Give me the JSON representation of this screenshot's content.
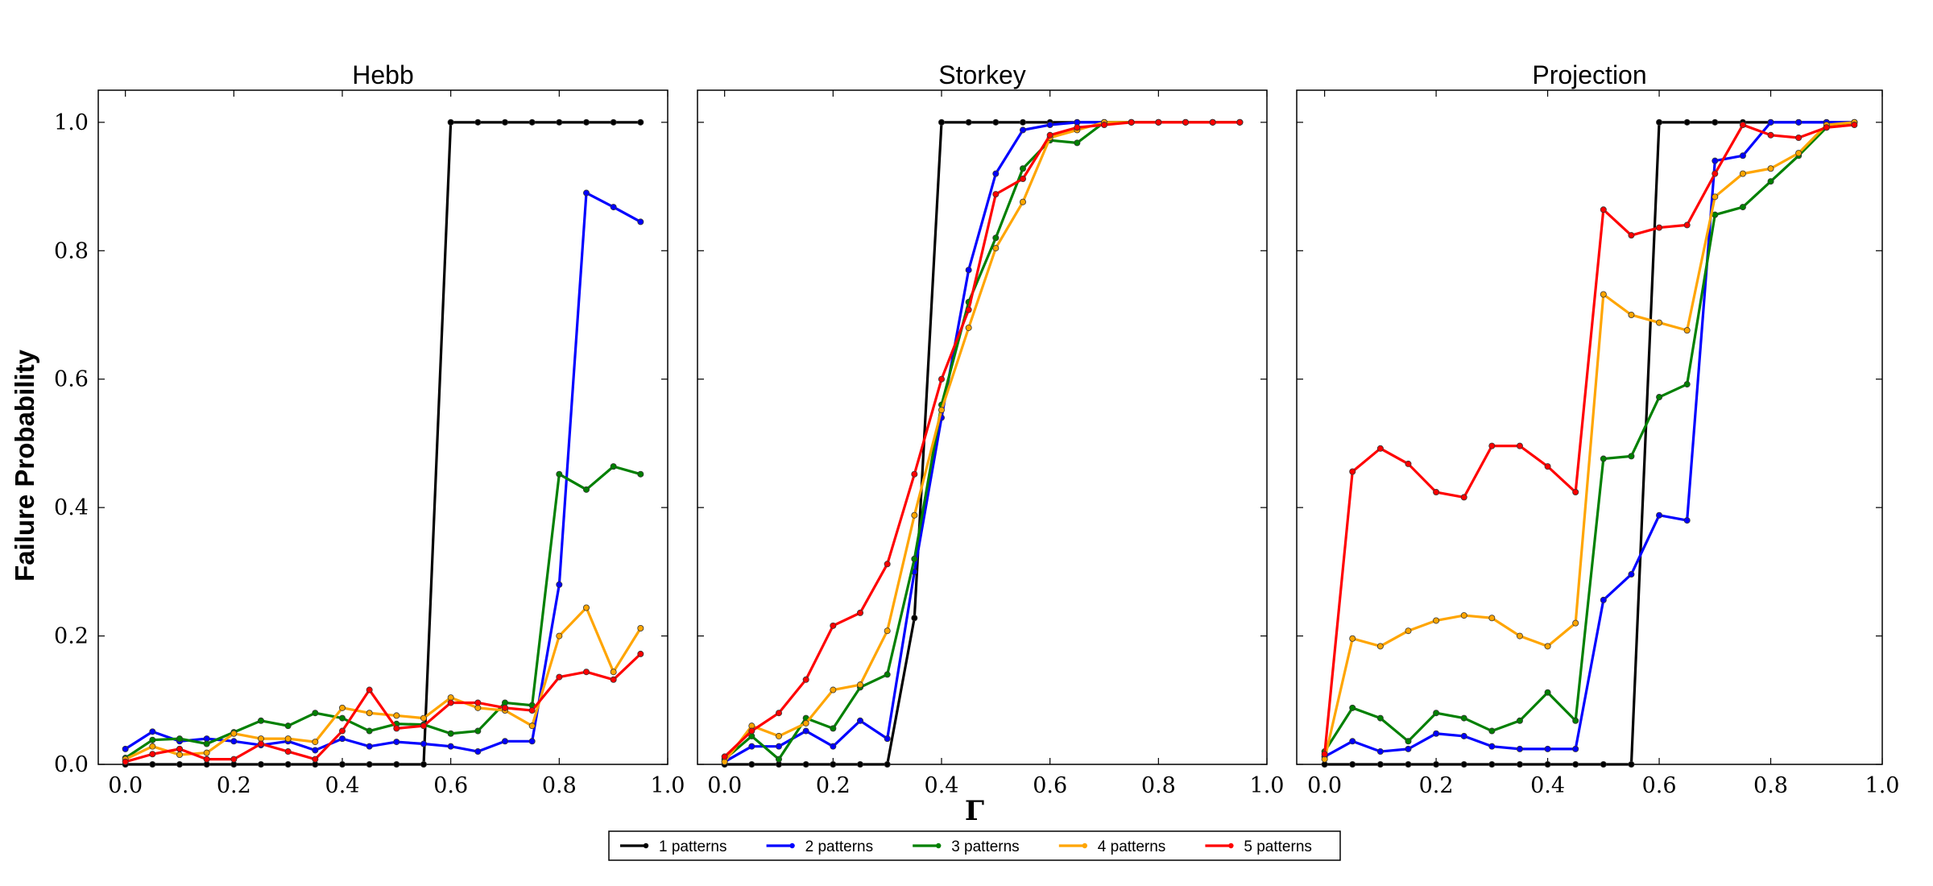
{
  "chart_data": {
    "type": "line",
    "ylabel": "Failure Probability",
    "xlabel": "Γ",
    "xlim": [
      -0.05,
      1.0
    ],
    "ylim": [
      0.0,
      1.05
    ],
    "xticks": [
      0.0,
      0.2,
      0.4,
      0.6,
      0.8,
      1.0
    ],
    "xtick_labels": [
      "0.0",
      "0.2",
      "0.4",
      "0.6",
      "0.8",
      "1.0"
    ],
    "yticks": [
      0.0,
      0.2,
      0.4,
      0.6,
      0.8,
      1.0
    ],
    "ytick_labels": [
      "0.0",
      "0.2",
      "0.4",
      "0.6",
      "0.8",
      "1.0"
    ],
    "grid": false,
    "legend_position": "bottom-center",
    "x": [
      0.0,
      0.05,
      0.1,
      0.15,
      0.2,
      0.25,
      0.3,
      0.35,
      0.4,
      0.45,
      0.5,
      0.55,
      0.6,
      0.65,
      0.7,
      0.75,
      0.8,
      0.85,
      0.9,
      0.95
    ],
    "series_styles": [
      {
        "name": "1 patterns",
        "color": "#000000"
      },
      {
        "name": "2 patterns",
        "color": "#0000ff"
      },
      {
        "name": "3 patterns",
        "color": "#008000"
      },
      {
        "name": "4 patterns",
        "color": "#ffa500"
      },
      {
        "name": "5 patterns",
        "color": "#ff0000"
      }
    ],
    "panels": [
      {
        "title": "Hebb",
        "series": [
          {
            "name": "1 patterns",
            "values": [
              0.0,
              0.0,
              0.0,
              0.0,
              0.0,
              0.0,
              0.0,
              0.0,
              0.0,
              0.0,
              0.0,
              0.0,
              1.0,
              1.0,
              1.0,
              1.0,
              1.0,
              1.0,
              1.0,
              1.0
            ]
          },
          {
            "name": "2 patterns",
            "values": [
              0.024,
              0.051,
              0.036,
              0.04,
              0.036,
              0.03,
              0.036,
              0.022,
              0.04,
              0.028,
              0.035,
              0.032,
              0.028,
              0.02,
              0.036,
              0.036,
              0.28,
              0.89,
              0.868,
              0.845
            ]
          },
          {
            "name": "3 patterns",
            "values": [
              0.01,
              0.038,
              0.04,
              0.032,
              0.05,
              0.068,
              0.06,
              0.08,
              0.072,
              0.052,
              0.063,
              0.062,
              0.048,
              0.052,
              0.096,
              0.092,
              0.452,
              0.428,
              0.464,
              0.452
            ]
          },
          {
            "name": "4 patterns",
            "values": [
              0.008,
              0.028,
              0.015,
              0.018,
              0.048,
              0.04,
              0.04,
              0.035,
              0.088,
              0.08,
              0.076,
              0.072,
              0.104,
              0.088,
              0.084,
              0.06,
              0.2,
              0.244,
              0.144,
              0.212
            ]
          },
          {
            "name": "5 patterns",
            "values": [
              0.004,
              0.016,
              0.024,
              0.008,
              0.008,
              0.032,
              0.02,
              0.008,
              0.052,
              0.116,
              0.056,
              0.06,
              0.096,
              0.096,
              0.088,
              0.084,
              0.136,
              0.144,
              0.132,
              0.172
            ]
          }
        ]
      },
      {
        "title": "Storkey",
        "series": [
          {
            "name": "1 patterns",
            "values": [
              0.0,
              0.0,
              0.0,
              0.0,
              0.0,
              0.0,
              0.0,
              0.228,
              1.0,
              1.0,
              1.0,
              1.0,
              1.0,
              1.0,
              1.0,
              1.0,
              1.0,
              1.0,
              1.0,
              1.0
            ]
          },
          {
            "name": "2 patterns",
            "values": [
              0.004,
              0.028,
              0.028,
              0.052,
              0.028,
              0.068,
              0.04,
              0.3,
              0.54,
              0.77,
              0.92,
              0.988,
              0.996,
              1.0,
              1.0,
              1.0,
              1.0,
              1.0,
              1.0,
              1.0
            ]
          },
          {
            "name": "3 patterns",
            "values": [
              0.008,
              0.044,
              0.008,
              0.072,
              0.056,
              0.12,
              0.14,
              0.32,
              0.56,
              0.72,
              0.82,
              0.928,
              0.972,
              0.968,
              1.0,
              1.0,
              1.0,
              1.0,
              1.0,
              1.0
            ]
          },
          {
            "name": "4 patterns",
            "values": [
              0.004,
              0.06,
              0.044,
              0.064,
              0.116,
              0.124,
              0.208,
              0.388,
              0.552,
              0.68,
              0.804,
              0.876,
              0.976,
              0.988,
              1.0,
              1.0,
              1.0,
              1.0,
              1.0,
              1.0
            ]
          },
          {
            "name": "5 patterns",
            "values": [
              0.012,
              0.052,
              0.08,
              0.132,
              0.216,
              0.236,
              0.312,
              0.452,
              0.6,
              0.708,
              0.888,
              0.912,
              0.98,
              0.992,
              0.996,
              1.0,
              1.0,
              1.0,
              1.0,
              1.0
            ]
          }
        ]
      },
      {
        "title": "Projection",
        "series": [
          {
            "name": "1 patterns",
            "values": [
              0.0,
              0.0,
              0.0,
              0.0,
              0.0,
              0.0,
              0.0,
              0.0,
              0.0,
              0.0,
              0.0,
              0.0,
              1.0,
              1.0,
              1.0,
              1.0,
              1.0,
              1.0,
              1.0,
              1.0
            ]
          },
          {
            "name": "2 patterns",
            "values": [
              0.012,
              0.036,
              0.02,
              0.024,
              0.048,
              0.044,
              0.028,
              0.024,
              0.024,
              0.024,
              0.256,
              0.296,
              0.388,
              0.38,
              0.94,
              0.948,
              1.0,
              1.0,
              1.0,
              1.0
            ]
          },
          {
            "name": "3 patterns",
            "values": [
              0.02,
              0.088,
              0.072,
              0.036,
              0.08,
              0.072,
              0.052,
              0.068,
              0.112,
              0.068,
              0.476,
              0.48,
              0.572,
              0.592,
              0.856,
              0.868,
              0.908,
              0.948,
              0.992,
              1.0
            ]
          },
          {
            "name": "4 patterns",
            "values": [
              0.008,
              0.196,
              0.184,
              0.208,
              0.224,
              0.232,
              0.228,
              0.2,
              0.184,
              0.22,
              0.732,
              0.7,
              0.688,
              0.676,
              0.884,
              0.92,
              0.928,
              0.952,
              0.996,
              1.0
            ]
          },
          {
            "name": "5 patterns",
            "values": [
              0.016,
              0.456,
              0.492,
              0.468,
              0.424,
              0.416,
              0.496,
              0.496,
              0.464,
              0.424,
              0.864,
              0.824,
              0.836,
              0.84,
              0.92,
              0.996,
              0.98,
              0.976,
              0.992,
              0.996
            ]
          }
        ]
      }
    ]
  }
}
